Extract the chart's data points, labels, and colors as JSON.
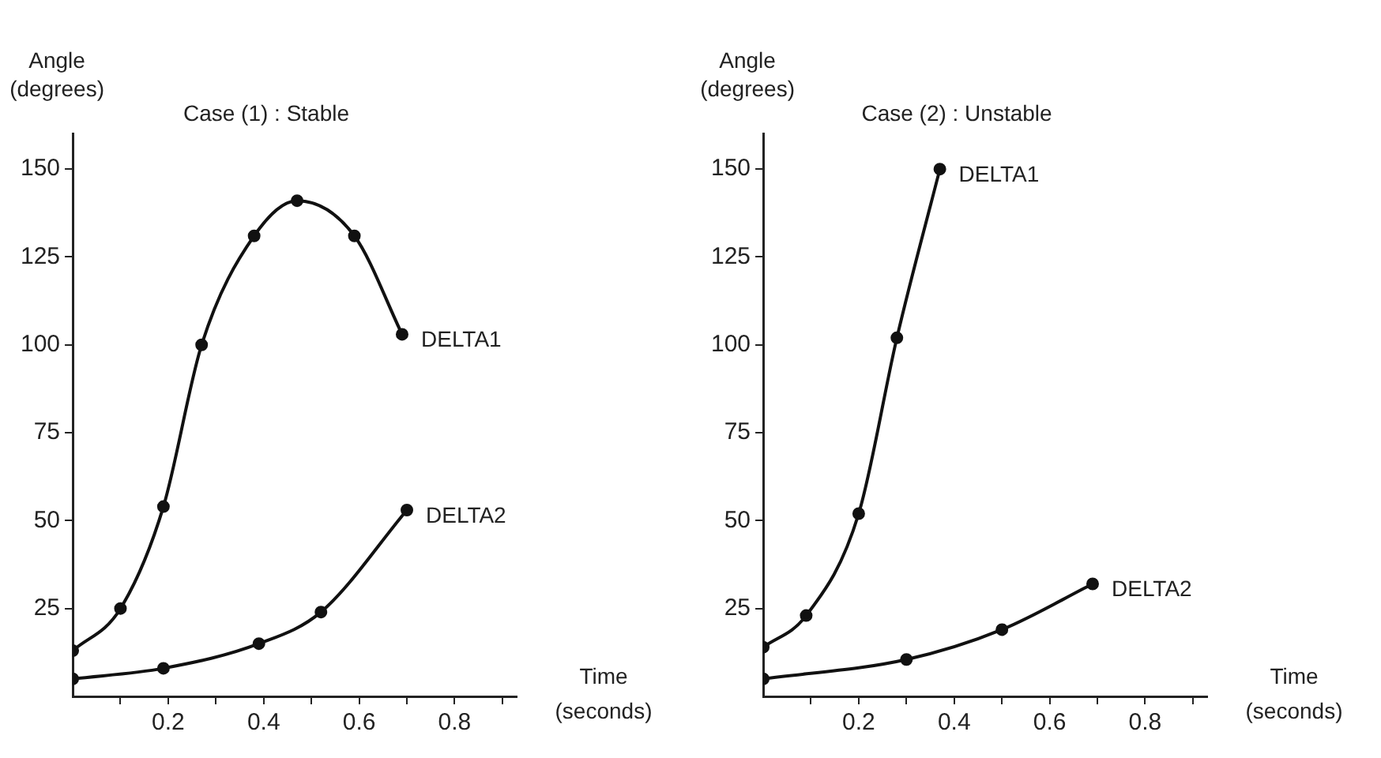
{
  "chart_data": [
    {
      "type": "line",
      "title": "Case (1) : Stable",
      "xlabel": "Time (seconds)",
      "ylabel": "Angle (degrees)",
      "xlim": [
        0,
        0.93
      ],
      "ylim": [
        0,
        160
      ],
      "xticks": [
        {
          "value": 0.1,
          "label": null
        },
        0.2,
        {
          "value": 0.3,
          "label": null
        },
        0.4,
        {
          "value": 0.5,
          "label": null
        },
        0.6,
        {
          "value": 0.7,
          "label": null
        },
        0.8,
        {
          "value": 0.9,
          "label": null
        }
      ],
      "yticks": [
        25,
        50,
        75,
        100,
        125,
        150
      ],
      "grid": false,
      "legend": false,
      "marker": "circle",
      "line_style": "solid",
      "series": [
        {
          "name": "DELTA1",
          "color": "#111111",
          "x": [
            0,
            0.1,
            0.19,
            0.27,
            0.38,
            0.47,
            0.59,
            0.69
          ],
          "values": [
            13,
            25,
            54,
            100,
            131,
            141,
            131,
            103
          ]
        },
        {
          "name": "DELTA2",
          "color": "#111111",
          "x": [
            0,
            0.19,
            0.39,
            0.52,
            0.7
          ],
          "values": [
            5,
            8,
            15,
            24,
            53
          ]
        }
      ]
    },
    {
      "type": "line",
      "title": "Case (2) : Unstable",
      "xlabel": "Time (seconds)",
      "ylabel": "Angle (degrees)",
      "xlim": [
        0,
        0.93
      ],
      "ylim": [
        0,
        160
      ],
      "xticks": [
        {
          "value": 0.1,
          "label": null
        },
        0.2,
        {
          "value": 0.3,
          "label": null
        },
        0.4,
        {
          "value": 0.5,
          "label": null
        },
        0.6,
        {
          "value": 0.7,
          "label": null
        },
        0.8,
        {
          "value": 0.9,
          "label": null
        }
      ],
      "yticks": [
        25,
        50,
        75,
        100,
        125,
        150
      ],
      "grid": false,
      "legend": false,
      "marker": "circle",
      "line_style": "solid",
      "series": [
        {
          "name": "DELTA1",
          "color": "#111111",
          "x": [
            0,
            0.09,
            0.2,
            0.28,
            0.37
          ],
          "values": [
            14,
            23,
            52,
            102,
            150
          ]
        },
        {
          "name": "DELTA2",
          "color": "#111111",
          "x": [
            0,
            0.3,
            0.5,
            0.69
          ],
          "values": [
            5,
            10.5,
            19,
            32
          ]
        }
      ]
    }
  ]
}
